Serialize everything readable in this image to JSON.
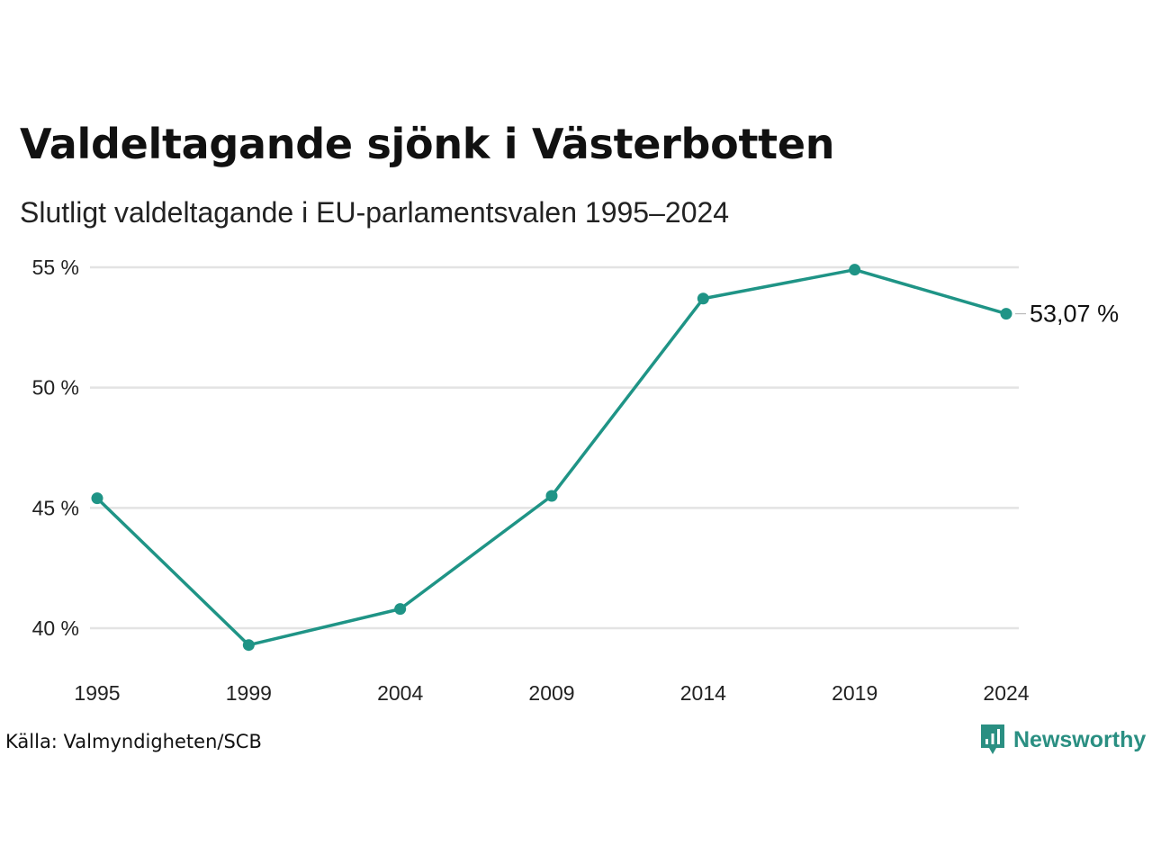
{
  "header": {
    "title": "Valdeltagande sjönk i Västerbotten",
    "subtitle": "Slutligt valdeltagande i EU-parlamentsvalen 1995–2024"
  },
  "footer": {
    "source": "Källa: Valmyndigheten/SCB",
    "brand": "Newsworthy",
    "brand_icon": "bar-chart-speech-bubble-icon"
  },
  "colors": {
    "line": "#1f9486",
    "grid": "#e3e3e3",
    "brand": "#2a8f82"
  },
  "chart_data": {
    "type": "line",
    "title": "Valdeltagande sjönk i Västerbotten",
    "subtitle": "Slutligt valdeltagande i EU-parlamentsvalen 1995–2024",
    "x": [
      "1995",
      "1999",
      "2004",
      "2009",
      "2014",
      "2019",
      "2024"
    ],
    "series": [
      {
        "values": [
          45.4,
          39.3,
          40.8,
          45.5,
          53.7,
          54.9,
          53.07
        ]
      }
    ],
    "y_ticks": [
      {
        "value": 55,
        "label": "55 %"
      },
      {
        "value": 50,
        "label": "50 %"
      },
      {
        "value": 45,
        "label": "45 %"
      },
      {
        "value": 40,
        "label": "40 %"
      }
    ],
    "ylim": [
      40,
      55
    ],
    "end_label": "53,07 %",
    "grid": "horizontal",
    "legend": "none",
    "xlabel": "",
    "ylabel": ""
  }
}
